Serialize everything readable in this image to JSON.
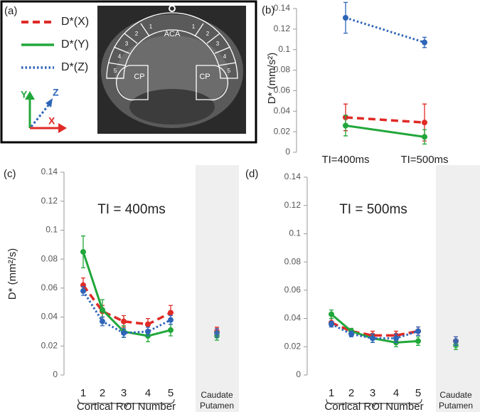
{
  "panel_a": {
    "label": "(a)",
    "axes": [
      "X",
      "Y",
      "Z"
    ],
    "aca": "ACA",
    "cp": [
      "CP",
      "CP"
    ],
    "regions_left": [
      "1",
      "2",
      "3",
      "4",
      "5"
    ],
    "regions_right": [
      "1",
      "2",
      "3",
      "4",
      "5"
    ]
  },
  "chart_data": [
    {
      "type": "line",
      "panel": "(b)",
      "y_label": "D* (mm/s²)",
      "categories": [
        "TI=400ms",
        "TI=500ms"
      ],
      "ylim": [
        0,
        0.14
      ],
      "yticks": [
        0,
        0.02,
        0.04,
        0.06,
        0.08,
        0.1,
        0.12,
        0.14
      ],
      "series": [
        {
          "name": "D*(X)",
          "color": "#e02a26",
          "line_style": "dashed",
          "values": [
            0.034,
            0.029
          ],
          "errors": [
            0.013,
            0.018
          ]
        },
        {
          "name": "D*(Y)",
          "color": "#21a73a",
          "line_style": "solid",
          "values": [
            0.026,
            0.015
          ],
          "errors": [
            0.01,
            0.007
          ]
        },
        {
          "name": "D*(Z)",
          "color": "#2e65b8",
          "line_style": "dotted",
          "values": [
            0.131,
            0.107
          ],
          "errors": [
            0.015,
            0.005
          ]
        }
      ]
    },
    {
      "type": "line",
      "panel": "(c)",
      "title": "TI = 400ms",
      "y_label": "D* (mm²/s)",
      "x_label": "Cortical ROI Number",
      "categories": [
        "1",
        "2",
        "3",
        "4",
        "5"
      ],
      "cp_label": [
        "Caudate",
        "Putamen"
      ],
      "ylim": [
        0,
        0.14
      ],
      "yticks": [
        0,
        0.02,
        0.04,
        0.06,
        0.08,
        0.1,
        0.12,
        0.14
      ],
      "series": [
        {
          "color": "#e02a26",
          "line_style": "dashed",
          "values": [
            0.062,
            0.044,
            0.037,
            0.035,
            0.043
          ],
          "errors": [
            0.005,
            0.004,
            0.004,
            0.004,
            0.005
          ],
          "cp_value": 0.03,
          "cp_error": 0.003
        },
        {
          "color": "#21a73a",
          "line_style": "solid",
          "values": [
            0.085,
            0.045,
            0.03,
            0.027,
            0.031
          ],
          "errors": [
            0.011,
            0.007,
            0.004,
            0.004,
            0.004
          ],
          "cp_value": 0.027,
          "cp_error": 0.003
        },
        {
          "color": "#2e65b8",
          "line_style": "dotted",
          "values": [
            0.058,
            0.037,
            0.029,
            0.03,
            0.038
          ],
          "errors": [
            0.003,
            0.003,
            0.003,
            0.003,
            0.003
          ],
          "cp_value": 0.029,
          "cp_error": 0.003
        }
      ]
    },
    {
      "type": "line",
      "panel": "(d)",
      "title": "TI = 500ms",
      "x_label": "Cortical ROI Number",
      "categories": [
        "1",
        "2",
        "3",
        "4",
        "5"
      ],
      "cp_label": [
        "Caudate",
        "Putamen"
      ],
      "ylim": [
        0,
        0.14
      ],
      "yticks": [
        0,
        0.02,
        0.04,
        0.06,
        0.08,
        0.1,
        0.12,
        0.14
      ],
      "series": [
        {
          "color": "#e02a26",
          "line_style": "dashed",
          "values": [
            0.037,
            0.031,
            0.028,
            0.028,
            0.031
          ],
          "errors": [
            0.003,
            0.002,
            0.003,
            0.003,
            0.003
          ],
          "cp_value": 0.024,
          "cp_error": 0.003
        },
        {
          "color": "#21a73a",
          "line_style": "solid",
          "values": [
            0.043,
            0.031,
            0.026,
            0.023,
            0.024
          ],
          "errors": [
            0.003,
            0.002,
            0.003,
            0.003,
            0.003
          ],
          "cp_value": 0.021,
          "cp_error": 0.003
        },
        {
          "color": "#2e65b8",
          "line_style": "dotted",
          "values": [
            0.036,
            0.029,
            0.026,
            0.026,
            0.031
          ],
          "errors": [
            0.002,
            0.002,
            0.003,
            0.003,
            0.003
          ],
          "cp_value": 0.024,
          "cp_error": 0.003
        }
      ]
    }
  ]
}
